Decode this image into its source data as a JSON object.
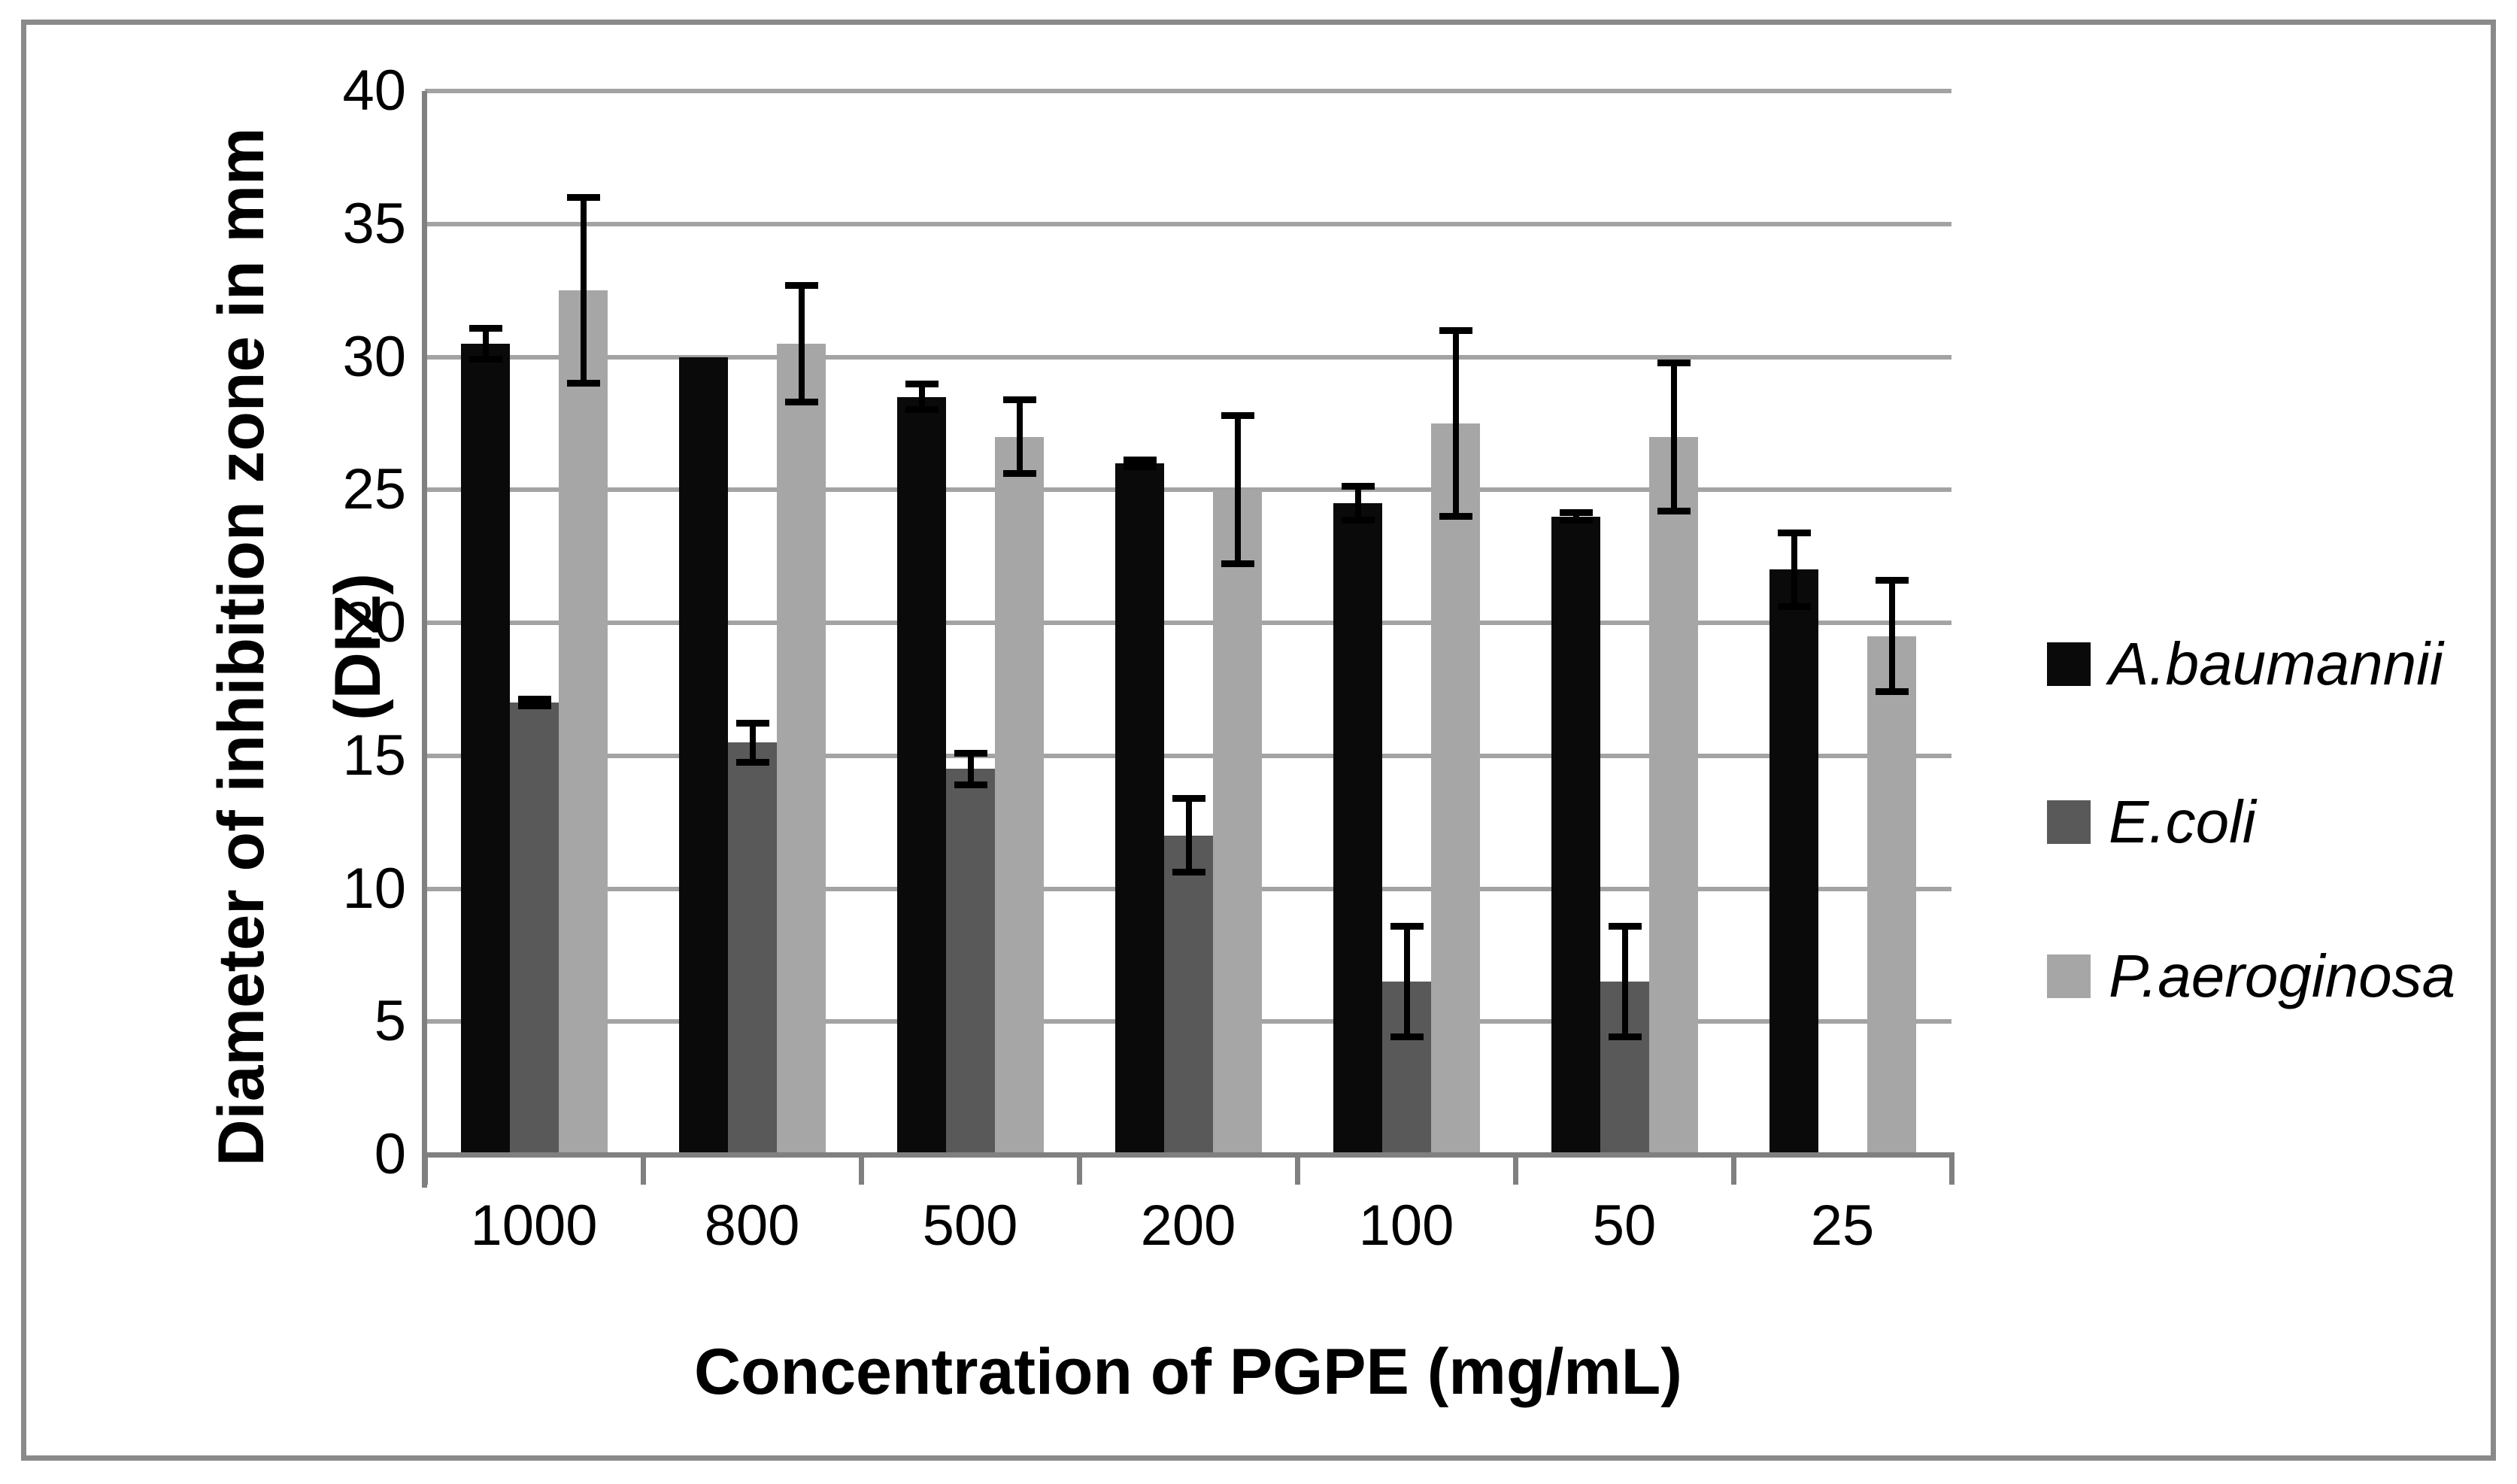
{
  "figure": {
    "background": "#ffffff",
    "border_color": "#8a8a8a"
  },
  "chart_data": {
    "type": "bar",
    "title": "",
    "categories": [
      "1000",
      "800",
      "500",
      "200",
      "100",
      "50",
      "25"
    ],
    "series": [
      {
        "name": "A.baumannii",
        "color": "#0a0a0a",
        "values": [
          30.5,
          30,
          28.5,
          26,
          24.5,
          24,
          22
        ],
        "errors": [
          0.6,
          0,
          0.5,
          0.15,
          0.65,
          0.15,
          1.4
        ]
      },
      {
        "name": "E.coli",
        "color": "#595959",
        "values": [
          17,
          15.5,
          14.5,
          12,
          6.5,
          6.5,
          null
        ],
        "errors": [
          0.15,
          0.75,
          0.6,
          1.4,
          2.1,
          2.1,
          null
        ]
      },
      {
        "name": "P.aeroginosa",
        "color": "#a6a6a6",
        "values": [
          32.5,
          30.5,
          27,
          25,
          27.5,
          27,
          19.5
        ],
        "errors": [
          3.5,
          2.2,
          1.4,
          2.8,
          3.5,
          2.8,
          2.1
        ]
      }
    ],
    "xlabel": "Concentration of PGPE (mg/mL)",
    "ylabel_line1": "Diameter of inhibition zone in mm",
    "ylabel_line2": "(DIZ)",
    "ylim": [
      0,
      40
    ],
    "yticks": [
      0,
      5,
      10,
      15,
      20,
      25,
      30,
      35,
      40
    ],
    "grid": "horizontal",
    "legend_position": "right",
    "error_bars": true,
    "axis_color": "#808080",
    "gridline_color": "#a3a3a3",
    "error_bar_color": "#000000"
  }
}
